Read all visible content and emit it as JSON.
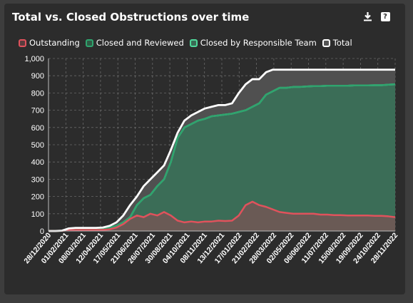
{
  "title": "Total vs. Closed Obstructions over time",
  "toolbar": {
    "download_icon": "download-icon",
    "help_label": "?"
  },
  "colors": {
    "outstanding": "#e0525c",
    "closed_reviewed": "#2fa46e",
    "closed_team": "#4fd79a",
    "total": "#ffffff",
    "panel": "#2c2c2c",
    "grid": "#777777"
  },
  "legend": [
    {
      "label": "Outstanding",
      "color": "#e0525c"
    },
    {
      "label": "Closed and Reviewed",
      "color": "#2fa46e"
    },
    {
      "label": "Closed by Responsible Team",
      "color": "#4fd79a"
    },
    {
      "label": "Total",
      "color": "#ffffff"
    }
  ],
  "chart_data": {
    "type": "area",
    "title": "Total vs. Closed Obstructions over time",
    "xlabel": "",
    "ylabel": "",
    "ylim": [
      0,
      1000
    ],
    "yticks": [
      0,
      100,
      200,
      300,
      400,
      500,
      600,
      700,
      800,
      900,
      1000
    ],
    "ytick_labels": [
      "0",
      "100",
      "200",
      "300",
      "400",
      "500",
      "600",
      "700",
      "800",
      "900",
      "1,000"
    ],
    "xticks": [
      "28/12/2020",
      "01/02/2021",
      "08/03/2021",
      "12/04/2021",
      "17/05/2021",
      "21/06/2021",
      "26/07/2021",
      "30/08/2021",
      "04/10/2021",
      "08/11/2021",
      "13/12/2021",
      "17/01/2022",
      "21/02/2022",
      "28/03/2022",
      "02/05/2022",
      "06/06/2022",
      "11/07/2022",
      "15/08/2022",
      "19/09/2022",
      "24/10/2022",
      "28/11/2022"
    ],
    "grid": true,
    "legend_position": "top",
    "x": [
      "28/12/2020",
      "11/01/2021",
      "25/01/2021",
      "08/02/2021",
      "22/02/2021",
      "08/03/2021",
      "22/03/2021",
      "05/04/2021",
      "19/04/2021",
      "03/05/2021",
      "17/05/2021",
      "31/05/2021",
      "14/06/2021",
      "28/06/2021",
      "12/07/2021",
      "26/07/2021",
      "09/08/2021",
      "23/08/2021",
      "06/09/2021",
      "20/09/2021",
      "04/10/2021",
      "18/10/2021",
      "01/11/2021",
      "15/11/2021",
      "29/11/2021",
      "13/12/2021",
      "27/12/2021",
      "10/01/2022",
      "24/01/2022",
      "07/02/2022",
      "21/02/2022",
      "07/03/2022",
      "21/03/2022",
      "04/04/2022",
      "18/04/2022",
      "02/05/2022",
      "16/05/2022",
      "30/05/2022",
      "13/06/2022",
      "27/06/2022",
      "11/07/2022",
      "25/07/2022",
      "08/08/2022",
      "22/08/2022",
      "05/09/2022",
      "19/09/2022",
      "03/10/2022",
      "17/10/2022",
      "31/10/2022",
      "14/11/2022",
      "28/11/2022",
      "12/12/2022"
    ],
    "series": [
      {
        "name": "Total",
        "values": [
          0,
          0,
          2,
          15,
          18,
          18,
          18,
          18,
          20,
          30,
          50,
          90,
          150,
          200,
          260,
          300,
          340,
          380,
          470,
          570,
          640,
          670,
          690,
          710,
          720,
          730,
          730,
          740,
          800,
          850,
          880,
          880,
          920,
          935,
          935,
          935,
          935,
          935,
          935,
          935,
          935,
          935,
          935,
          935,
          935,
          935,
          935,
          935,
          935,
          935,
          935,
          935
        ]
      },
      {
        "name": "Closed by Responsible Team",
        "values": [
          0,
          0,
          1,
          10,
          12,
          12,
          12,
          12,
          14,
          20,
          30,
          50,
          80,
          150,
          190,
          210,
          260,
          300,
          400,
          540,
          600,
          620,
          640,
          650,
          665,
          670,
          675,
          680,
          690,
          700,
          720,
          740,
          790,
          810,
          830,
          830,
          835,
          835,
          838,
          840,
          840,
          842,
          842,
          842,
          842,
          844,
          844,
          844,
          845,
          845,
          848,
          850
        ]
      },
      {
        "name": "Closed and Reviewed",
        "values": [
          0,
          0,
          1,
          10,
          12,
          12,
          12,
          12,
          14,
          20,
          30,
          50,
          80,
          150,
          190,
          210,
          260,
          300,
          400,
          540,
          600,
          620,
          640,
          650,
          665,
          670,
          675,
          680,
          690,
          700,
          720,
          740,
          790,
          810,
          830,
          830,
          835,
          835,
          838,
          840,
          840,
          842,
          842,
          842,
          842,
          844,
          844,
          844,
          845,
          845,
          848,
          850
        ]
      },
      {
        "name": "Outstanding",
        "values": [
          0,
          0,
          1,
          5,
          6,
          6,
          6,
          6,
          6,
          10,
          20,
          40,
          70,
          90,
          80,
          100,
          90,
          110,
          90,
          60,
          50,
          55,
          50,
          55,
          55,
          60,
          58,
          60,
          90,
          150,
          170,
          150,
          140,
          125,
          110,
          105,
          100,
          100,
          100,
          100,
          95,
          95,
          92,
          92,
          90,
          90,
          90,
          90,
          88,
          88,
          85,
          80
        ]
      }
    ]
  }
}
